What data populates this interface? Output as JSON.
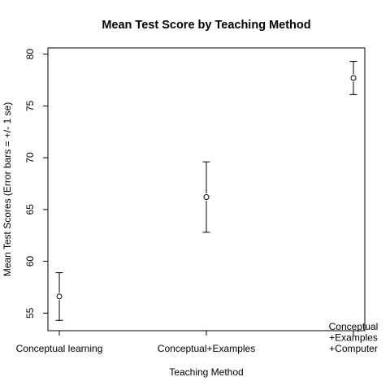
{
  "chart_data": {
    "type": "scatter",
    "title": "Mean Test Score by Teaching Method",
    "xlabel": "Teaching Method",
    "ylabel": "Mean Test Scores (Error bars = +/- 1 se)",
    "categories": [
      [
        "Conceptual learning"
      ],
      [
        "Conceptual+Examples"
      ],
      [
        "Conceptual",
        "+Examples",
        "+Computer"
      ]
    ],
    "means": [
      56.6,
      66.2,
      77.7
    ],
    "lower": [
      54.3,
      62.8,
      76.1
    ],
    "upper": [
      58.9,
      69.6,
      79.3
    ],
    "ylim": [
      53.3,
      80.6
    ],
    "yticks": [
      55,
      60,
      65,
      70,
      75,
      80
    ],
    "grid": false,
    "legend": "none"
  }
}
